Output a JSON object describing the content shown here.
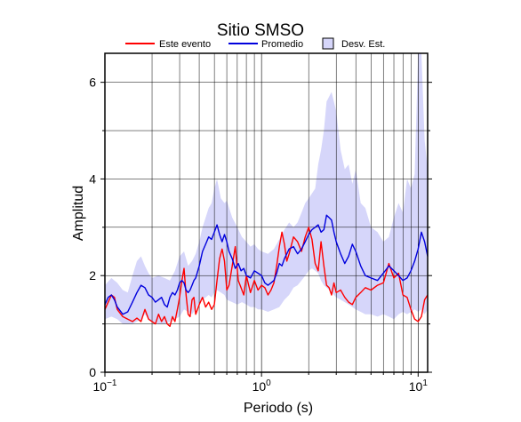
{
  "chart_data": {
    "type": "line",
    "title": "Sitio SMSO",
    "xlabel": "Periodo (s)",
    "ylabel": "Amplitud",
    "xscale": "log",
    "xlim": [
      0.1,
      11.5
    ],
    "ylim": [
      0,
      6.6
    ],
    "x_ticks": [
      {
        "value": 0.1,
        "base": "10",
        "exp": "−1"
      },
      {
        "value": 1,
        "base": "10",
        "exp": "0"
      },
      {
        "value": 10,
        "base": "10",
        "exp": "1"
      }
    ],
    "y_ticks": [
      0,
      2,
      4,
      6
    ],
    "grid": true,
    "legend_position": "top",
    "legend": {
      "event": "Este evento",
      "mean": "Promedio",
      "std": "Desv. Est."
    },
    "colors": {
      "event": "#ff0000",
      "mean": "#0000dd",
      "std_fill": "#d6d6fa",
      "grid": "#000000"
    },
    "series": [
      {
        "name": "Este evento",
        "x": [
          0.1,
          0.105,
          0.11,
          0.115,
          0.12,
          0.13,
          0.14,
          0.15,
          0.16,
          0.17,
          0.18,
          0.19,
          0.2,
          0.21,
          0.22,
          0.23,
          0.24,
          0.25,
          0.26,
          0.27,
          0.28,
          0.29,
          0.3,
          0.31,
          0.32,
          0.33,
          0.34,
          0.35,
          0.36,
          0.37,
          0.38,
          0.4,
          0.42,
          0.44,
          0.46,
          0.48,
          0.5,
          0.52,
          0.54,
          0.56,
          0.58,
          0.6,
          0.62,
          0.65,
          0.68,
          0.71,
          0.74,
          0.77,
          0.8,
          0.85,
          0.9,
          0.95,
          1.0,
          1.05,
          1.1,
          1.15,
          1.2,
          1.25,
          1.3,
          1.35,
          1.4,
          1.45,
          1.5,
          1.6,
          1.7,
          1.8,
          1.9,
          2.0,
          2.1,
          2.2,
          2.3,
          2.4,
          2.5,
          2.6,
          2.7,
          2.8,
          2.9,
          3.0,
          3.2,
          3.4,
          3.6,
          3.8,
          4.0,
          4.3,
          4.6,
          5.0,
          5.5,
          6.0,
          6.5,
          7.0,
          7.5,
          8.0,
          8.5,
          9.0,
          9.5,
          10.0,
          10.5,
          11.0,
          11.5
        ],
        "values": [
          1.3,
          1.45,
          1.6,
          1.55,
          1.3,
          1.15,
          1.1,
          1.05,
          1.12,
          1.05,
          1.3,
          1.1,
          1.05,
          1.0,
          1.2,
          1.05,
          1.15,
          1.0,
          0.95,
          1.15,
          1.05,
          1.3,
          1.55,
          1.9,
          2.15,
          1.6,
          1.2,
          1.15,
          1.5,
          1.55,
          1.2,
          1.4,
          1.55,
          1.35,
          1.45,
          1.3,
          1.4,
          1.9,
          2.35,
          2.55,
          2.3,
          1.7,
          1.8,
          2.2,
          2.6,
          1.9,
          1.75,
          1.6,
          2.0,
          1.65,
          1.9,
          1.7,
          1.8,
          1.75,
          1.6,
          1.7,
          1.85,
          2.2,
          2.6,
          2.9,
          2.65,
          2.3,
          2.45,
          2.8,
          2.7,
          2.5,
          2.8,
          3.0,
          2.75,
          2.25,
          2.1,
          2.7,
          2.2,
          1.8,
          1.75,
          1.6,
          1.85,
          1.65,
          1.7,
          1.55,
          1.45,
          1.4,
          1.55,
          1.65,
          1.75,
          1.7,
          1.8,
          1.85,
          2.25,
          1.95,
          2.05,
          1.6,
          1.55,
          1.3,
          1.1,
          1.05,
          1.15,
          1.5,
          1.6
        ]
      },
      {
        "name": "Promedio",
        "x": [
          0.1,
          0.105,
          0.11,
          0.115,
          0.12,
          0.13,
          0.14,
          0.15,
          0.16,
          0.17,
          0.18,
          0.19,
          0.2,
          0.21,
          0.22,
          0.23,
          0.24,
          0.25,
          0.26,
          0.27,
          0.28,
          0.29,
          0.3,
          0.31,
          0.32,
          0.33,
          0.34,
          0.35,
          0.36,
          0.37,
          0.38,
          0.4,
          0.42,
          0.44,
          0.46,
          0.48,
          0.5,
          0.52,
          0.54,
          0.56,
          0.58,
          0.6,
          0.62,
          0.65,
          0.68,
          0.71,
          0.74,
          0.77,
          0.8,
          0.85,
          0.9,
          0.95,
          1.0,
          1.05,
          1.1,
          1.15,
          1.2,
          1.25,
          1.3,
          1.35,
          1.4,
          1.45,
          1.5,
          1.6,
          1.7,
          1.8,
          1.9,
          2.0,
          2.1,
          2.2,
          2.3,
          2.4,
          2.5,
          2.6,
          2.7,
          2.8,
          2.9,
          3.0,
          3.2,
          3.4,
          3.6,
          3.8,
          4.0,
          4.3,
          4.6,
          5.0,
          5.5,
          6.0,
          6.5,
          7.0,
          7.5,
          8.0,
          8.5,
          9.0,
          9.5,
          10.0,
          10.5,
          11.0,
          11.5
        ],
        "values": [
          1.4,
          1.55,
          1.6,
          1.5,
          1.35,
          1.2,
          1.25,
          1.45,
          1.65,
          1.8,
          1.75,
          1.6,
          1.55,
          1.45,
          1.5,
          1.55,
          1.4,
          1.35,
          1.55,
          1.65,
          1.6,
          1.7,
          1.85,
          1.9,
          1.85,
          1.7,
          1.65,
          1.7,
          1.8,
          1.9,
          1.95,
          2.2,
          2.5,
          2.65,
          2.8,
          2.75,
          2.9,
          3.05,
          2.85,
          2.7,
          2.85,
          2.7,
          2.5,
          2.35,
          2.15,
          2.25,
          2.1,
          2.15,
          2.0,
          1.95,
          2.1,
          2.05,
          2.0,
          1.85,
          1.8,
          1.85,
          1.9,
          2.05,
          2.25,
          2.2,
          2.35,
          2.45,
          2.55,
          2.6,
          2.45,
          2.55,
          2.7,
          2.85,
          2.95,
          3.0,
          3.05,
          2.9,
          2.95,
          3.25,
          3.2,
          3.15,
          2.9,
          2.7,
          2.45,
          2.25,
          2.4,
          2.65,
          2.5,
          2.2,
          2.0,
          1.95,
          1.9,
          2.05,
          2.2,
          2.1,
          2.0,
          1.9,
          1.95,
          2.1,
          2.3,
          2.55,
          2.9,
          2.7,
          2.4
        ]
      }
    ],
    "std_band": {
      "name": "Desv. Est.",
      "x": [
        0.1,
        0.11,
        0.12,
        0.13,
        0.14,
        0.15,
        0.16,
        0.17,
        0.18,
        0.19,
        0.2,
        0.22,
        0.24,
        0.26,
        0.28,
        0.3,
        0.32,
        0.34,
        0.36,
        0.38,
        0.4,
        0.42,
        0.44,
        0.46,
        0.48,
        0.5,
        0.52,
        0.55,
        0.58,
        0.6,
        0.65,
        0.7,
        0.75,
        0.8,
        0.85,
        0.9,
        0.95,
        1.0,
        1.1,
        1.2,
        1.3,
        1.4,
        1.5,
        1.6,
        1.7,
        1.8,
        1.9,
        2.0,
        2.1,
        2.2,
        2.3,
        2.4,
        2.5,
        2.6,
        2.8,
        3.0,
        3.2,
        3.4,
        3.6,
        3.8,
        4.0,
        4.3,
        4.6,
        5.0,
        5.5,
        6.0,
        6.5,
        7.0,
        7.5,
        8.0,
        8.5,
        9.0,
        9.5,
        10.0,
        10.5,
        11.0,
        11.5
      ],
      "upper": [
        1.8,
        1.95,
        1.85,
        1.7,
        1.65,
        2.0,
        2.3,
        2.4,
        2.2,
        2.05,
        1.95,
        2.0,
        1.95,
        1.9,
        2.1,
        2.4,
        2.5,
        2.2,
        2.3,
        2.45,
        2.7,
        3.0,
        3.2,
        3.4,
        3.5,
        3.8,
        4.0,
        3.6,
        3.5,
        3.55,
        3.2,
        3.0,
        2.8,
        2.7,
        2.6,
        2.65,
        2.55,
        2.5,
        2.45,
        2.55,
        2.75,
        2.95,
        3.1,
        3.0,
        3.1,
        3.3,
        3.5,
        3.6,
        3.7,
        3.8,
        4.3,
        4.6,
        5.0,
        5.6,
        5.8,
        5.4,
        4.6,
        4.2,
        4.3,
        3.9,
        4.2,
        3.5,
        3.4,
        3.0,
        2.9,
        2.7,
        2.8,
        3.2,
        3.5,
        3.3,
        4.0,
        3.8,
        4.1,
        6.6,
        6.6,
        4.8,
        4.2
      ],
      "lower": [
        1.1,
        1.15,
        1.1,
        1.0,
        1.0,
        1.0,
        1.05,
        1.1,
        1.2,
        1.1,
        1.05,
        1.0,
        1.0,
        1.05,
        1.1,
        1.15,
        1.3,
        1.25,
        1.2,
        1.3,
        1.45,
        1.5,
        1.55,
        1.6,
        1.55,
        1.65,
        1.7,
        1.65,
        1.6,
        1.5,
        1.45,
        1.4,
        1.45,
        1.4,
        1.35,
        1.35,
        1.3,
        1.3,
        1.25,
        1.3,
        1.35,
        1.5,
        1.6,
        1.75,
        1.8,
        1.9,
        2.0,
        2.1,
        2.15,
        2.1,
        2.05,
        1.9,
        1.8,
        1.75,
        1.65,
        1.55,
        1.5,
        1.45,
        1.4,
        1.35,
        1.3,
        1.25,
        1.2,
        1.2,
        1.15,
        1.2,
        1.15,
        1.1,
        1.2,
        1.25,
        1.2,
        1.25,
        1.3,
        1.25,
        1.3,
        1.2,
        1.3
      ]
    }
  }
}
